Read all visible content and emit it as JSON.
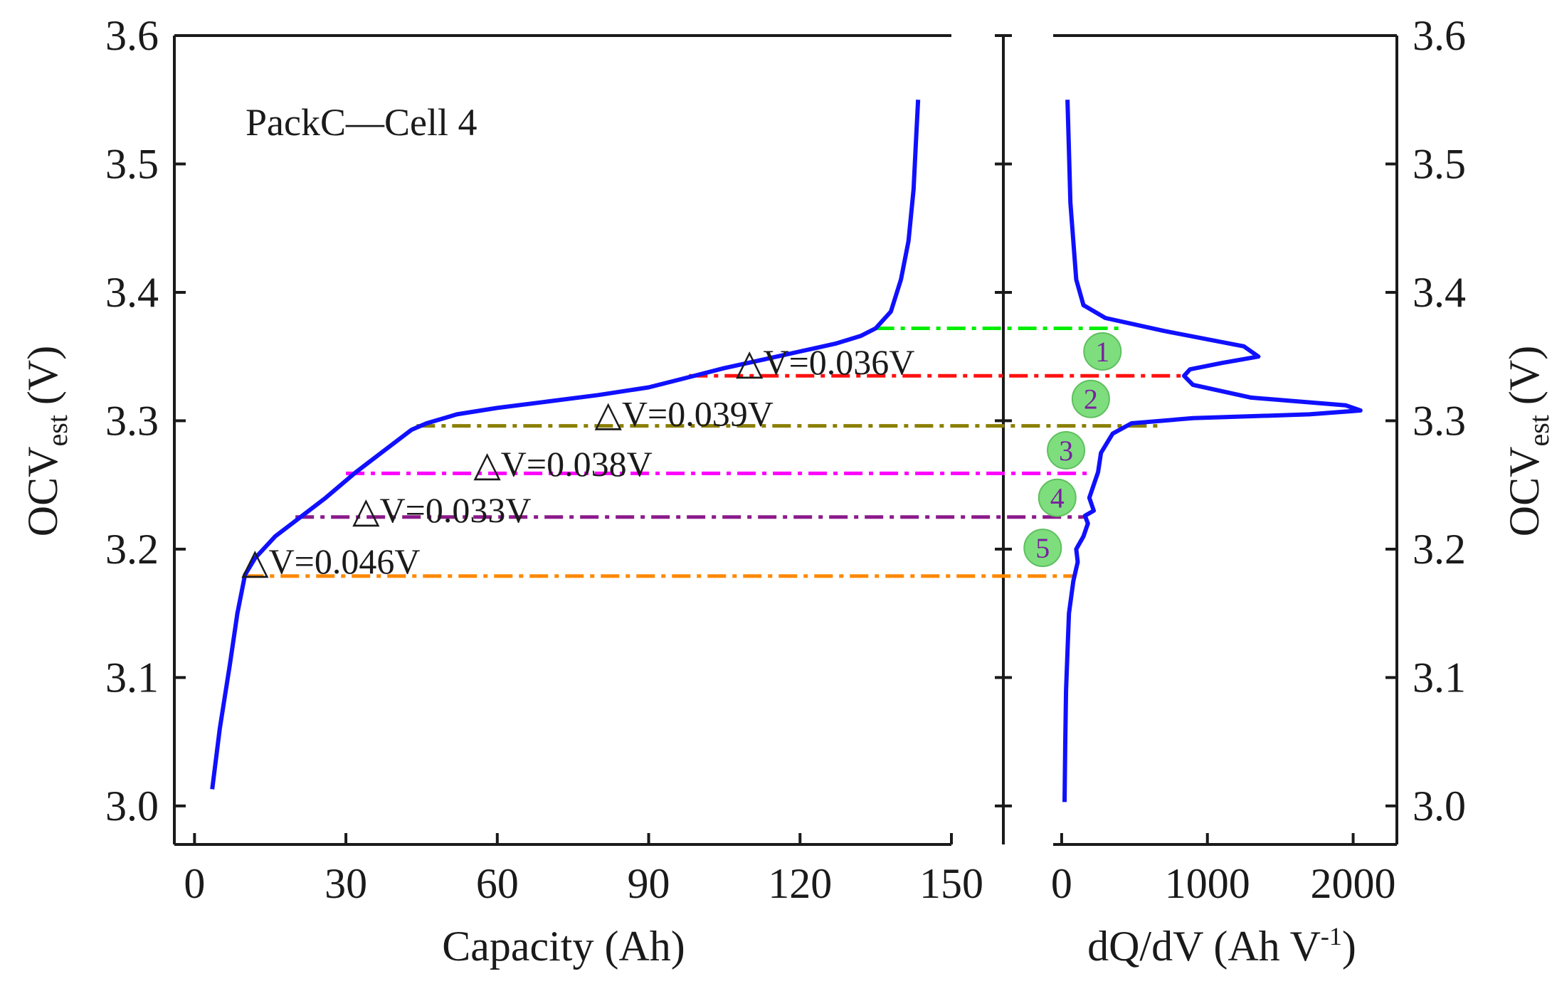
{
  "chart_data": [
    {
      "panel": "left",
      "type": "line",
      "xlabel": "Capacity (Ah)",
      "ylabel_main": "OCV",
      "ylabel_sub": "est",
      "ylabel_unit": "(V)",
      "annotation": "PackC—Cell 4",
      "xlim": [
        -4,
        150
      ],
      "ylim": [
        2.97,
        3.6
      ],
      "xticks": [
        "0",
        "30",
        "60",
        "90",
        "120",
        "150"
      ],
      "xtick_values": [
        0,
        30,
        60,
        90,
        120,
        150
      ],
      "yticks": [
        "3.0",
        "3.1",
        "3.2",
        "3.3",
        "3.4",
        "3.5",
        "3.6"
      ],
      "ytick_values": [
        3.0,
        3.1,
        3.2,
        3.3,
        3.4,
        3.5,
        3.6
      ],
      "curve_color": "#1010ff",
      "curve": {
        "x": [
          3.5,
          5,
          7,
          8.5,
          10,
          12,
          16,
          20,
          26,
          32,
          38,
          43,
          46,
          52,
          60,
          70,
          80,
          90,
          98,
          105,
          112,
          120,
          127,
          132,
          135,
          138,
          140,
          141.5,
          142.5,
          143,
          143.4
        ],
        "y": [
          3.013,
          3.06,
          3.11,
          3.15,
          3.18,
          3.193,
          3.21,
          3.222,
          3.24,
          3.26,
          3.278,
          3.293,
          3.298,
          3.305,
          3.31,
          3.315,
          3.32,
          3.326,
          3.334,
          3.341,
          3.347,
          3.354,
          3.36,
          3.366,
          3.372,
          3.385,
          3.41,
          3.44,
          3.48,
          3.52,
          3.55
        ]
      }
    },
    {
      "panel": "right",
      "type": "line",
      "xlabel_main": "dQ/dV (Ah V",
      "xlabel_sup": "-1",
      "xlabel_tail": ")",
      "ylabel_main": "OCV",
      "ylabel_sub": "est",
      "ylabel_unit": "(V)",
      "xlim": [
        -400,
        2300
      ],
      "ylim": [
        2.97,
        3.6
      ],
      "xticks": [
        "0",
        "1000",
        "2000"
      ],
      "xtick_values": [
        0,
        1000,
        2000
      ],
      "yticks": [
        "3.0",
        "3.1",
        "3.2",
        "3.3",
        "3.4",
        "3.5",
        "3.6"
      ],
      "ytick_values": [
        3.0,
        3.1,
        3.2,
        3.3,
        3.4,
        3.5,
        3.6
      ],
      "curve_color": "#1010ff",
      "curve": {
        "x": [
          20,
          25,
          30,
          40,
          50,
          80,
          100,
          110,
          100,
          150,
          180,
          160,
          220,
          190,
          250,
          270,
          350,
          480,
          900,
          1700,
          2050,
          1950,
          1300,
          900,
          840,
          880,
          1100,
          1350,
          1250,
          700,
          300,
          150,
          100,
          80,
          60,
          50,
          40
        ],
        "y": [
          3.003,
          3.05,
          3.09,
          3.12,
          3.15,
          3.175,
          3.185,
          3.19,
          3.2,
          3.21,
          3.22,
          3.226,
          3.23,
          3.24,
          3.26,
          3.275,
          3.29,
          3.298,
          3.302,
          3.305,
          3.308,
          3.312,
          3.318,
          3.328,
          3.335,
          3.34,
          3.345,
          3.35,
          3.358,
          3.37,
          3.38,
          3.39,
          3.41,
          3.44,
          3.47,
          3.51,
          3.55
        ]
      }
    }
  ],
  "markers": [
    {
      "y": 3.372,
      "x_left_start": 135,
      "x_right_end": 400,
      "color": "#00ee00"
    },
    {
      "y": 3.335,
      "x_left_start": 98,
      "x_right_end": 850,
      "color": "#ff1010"
    },
    {
      "y": 3.296,
      "x_left_start": 44,
      "x_right_end": 700,
      "color": "#8a7f00"
    },
    {
      "y": 3.259,
      "x_left_start": 30,
      "x_right_end": 200,
      "color": "#ff00ff"
    },
    {
      "y": 3.225,
      "x_left_start": 20,
      "x_right_end": 150,
      "color": "#8b1a8b"
    },
    {
      "y": 3.179,
      "x_left_start": 10,
      "x_right_end": 100,
      "color": "#ff8800"
    }
  ],
  "delta_labels": [
    {
      "text": "△V=0.036V",
      "x": 125,
      "y": 3.345
    },
    {
      "text": "△V=0.039V",
      "x": 97,
      "y": 3.305
    },
    {
      "text": "△V=0.038V",
      "x": 73,
      "y": 3.266
    },
    {
      "text": "△V=0.033V",
      "x": 49,
      "y": 3.23
    },
    {
      "text": "△V=0.046V",
      "x": 27,
      "y": 3.19
    }
  ],
  "circle_labels": [
    {
      "text": "1",
      "x": 280,
      "y": 3.354
    },
    {
      "text": "2",
      "x": 200,
      "y": 3.317
    },
    {
      "text": "3",
      "x": 30,
      "y": 3.277
    },
    {
      "text": "4",
      "x": -30,
      "y": 3.24
    },
    {
      "text": "5",
      "x": -130,
      "y": 3.201
    }
  ],
  "circle_fill": "#7ede7e"
}
